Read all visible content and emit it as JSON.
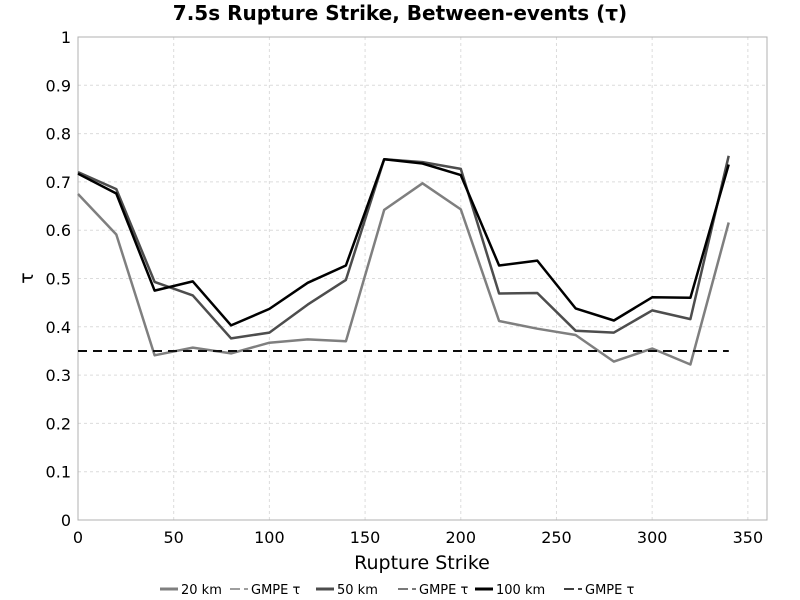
{
  "chart_data": {
    "type": "line",
    "title": "7.5s Rupture Strike, Between-events (τ)",
    "xlabel": "Rupture Strike",
    "ylabel": "τ",
    "xlim": [
      0,
      360
    ],
    "ylim": [
      0,
      1
    ],
    "xticks": [
      "0",
      "50",
      "100",
      "150",
      "200",
      "250",
      "300",
      "350"
    ],
    "yticks": [
      "0",
      "0.1",
      "0.2",
      "0.3",
      "0.4",
      "0.5",
      "0.6",
      "0.7",
      "0.8",
      "0.9",
      "1"
    ],
    "grid": true,
    "legend_position": "bottom",
    "x": [
      0,
      20,
      40,
      60,
      80,
      100,
      120,
      140,
      160,
      180,
      200,
      220,
      240,
      260,
      280,
      300,
      320,
      340
    ],
    "series": [
      {
        "name": "20 km",
        "color": "#7f7f7f",
        "dash": "solid",
        "values": [
          0.675,
          0.591,
          0.341,
          0.357,
          0.345,
          0.367,
          0.374,
          0.37,
          0.642,
          0.697,
          0.643,
          0.412,
          0.396,
          0.383,
          0.328,
          0.355,
          0.322,
          0.616
        ]
      },
      {
        "name": "GMPE τ",
        "color": "#7f7f7f",
        "dash": "dashed",
        "values": [
          0.35,
          0.35,
          0.35,
          0.35,
          0.35,
          0.35,
          0.35,
          0.35,
          0.35,
          0.35,
          0.35,
          0.35,
          0.35,
          0.35,
          0.35,
          0.35,
          0.35,
          0.35
        ]
      },
      {
        "name": "50 km",
        "color": "#4d4d4d",
        "dash": "solid",
        "values": [
          0.72,
          0.685,
          0.493,
          0.465,
          0.376,
          0.388,
          0.446,
          0.497,
          0.747,
          0.741,
          0.727,
          0.469,
          0.47,
          0.392,
          0.388,
          0.434,
          0.416,
          0.754
        ]
      },
      {
        "name": "GMPE τ",
        "color": "#4d4d4d",
        "dash": "dashed",
        "values": [
          0.35,
          0.35,
          0.35,
          0.35,
          0.35,
          0.35,
          0.35,
          0.35,
          0.35,
          0.35,
          0.35,
          0.35,
          0.35,
          0.35,
          0.35,
          0.35,
          0.35,
          0.35
        ]
      },
      {
        "name": "100 km",
        "color": "#000000",
        "dash": "solid",
        "values": [
          0.717,
          0.676,
          0.475,
          0.494,
          0.403,
          0.437,
          0.491,
          0.527,
          0.747,
          0.738,
          0.714,
          0.527,
          0.537,
          0.438,
          0.413,
          0.461,
          0.46,
          0.736
        ]
      },
      {
        "name": "GMPE τ",
        "color": "#000000",
        "dash": "dashed",
        "values": [
          0.35,
          0.35,
          0.35,
          0.35,
          0.35,
          0.35,
          0.35,
          0.35,
          0.35,
          0.35,
          0.35,
          0.35,
          0.35,
          0.35,
          0.35,
          0.35,
          0.35,
          0.35
        ]
      }
    ]
  }
}
